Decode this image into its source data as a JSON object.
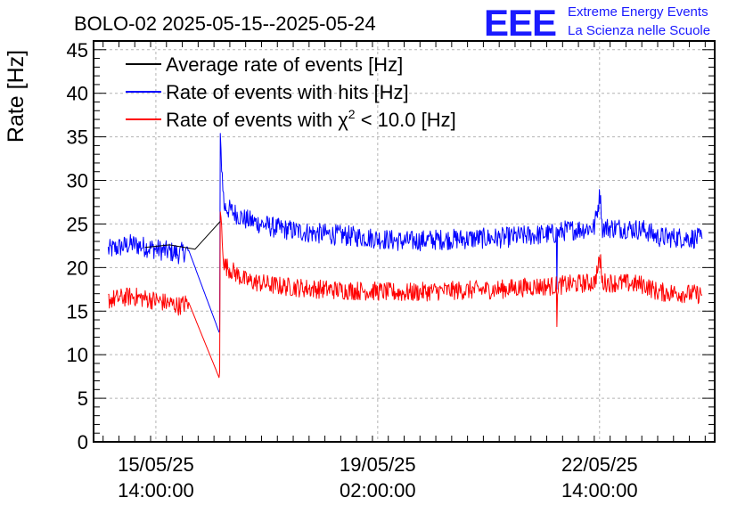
{
  "chart_data": {
    "type": "line",
    "title": "BOLO-02 2025-05-15--2025-05-24",
    "ylabel": "Rate [Hz]",
    "xlabel": "",
    "ylim": [
      0,
      46
    ],
    "yticks": [
      0,
      5,
      10,
      15,
      20,
      25,
      30,
      35,
      40,
      45
    ],
    "grid": true,
    "legend_position": "top-left",
    "x_unit": "days from 15/05/25 00:00",
    "xlim": [
      -0.4,
      9.4
    ],
    "xticks": [
      {
        "x": 0.583,
        "date": "15/05/25",
        "time": "14:00:00"
      },
      {
        "x": 4.083,
        "date": "19/05/25",
        "time": "02:00:00"
      },
      {
        "x": 7.583,
        "date": "22/05/25",
        "time": "14:00:00"
      }
    ],
    "logo": {
      "letters": "EEE",
      "line1": "Extreme Energy Events",
      "line2": "La Scienza nelle Scuole"
    },
    "series": [
      {
        "name": "Average rate of events [Hz]",
        "color": "#000000",
        "points": [
          [
            0.41,
            22.3
          ],
          [
            0.8,
            22.6
          ],
          [
            1.2,
            22.1
          ],
          [
            1.6,
            25.3
          ],
          [
            1.6,
            25.3
          ]
        ]
      },
      {
        "name": "Rate of events with hits [Hz]",
        "color": "#0000ff",
        "noise": 1.2,
        "points": [
          [
            -0.17,
            22.0
          ],
          [
            0.2,
            22.7
          ],
          [
            0.6,
            22.1
          ],
          [
            0.95,
            21.6
          ],
          [
            1.1,
            22.0
          ],
          [
            1.59,
            12.4
          ],
          [
            1.6,
            34.4
          ],
          [
            1.66,
            27.0
          ],
          [
            2.0,
            25.5
          ],
          [
            2.5,
            24.5
          ],
          [
            3.0,
            24.0
          ],
          [
            3.5,
            23.7
          ],
          [
            4.0,
            23.4
          ],
          [
            4.5,
            23.0
          ],
          [
            5.0,
            23.2
          ],
          [
            5.5,
            23.3
          ],
          [
            6.0,
            23.4
          ],
          [
            6.5,
            23.7
          ],
          [
            6.9,
            23.9
          ],
          [
            6.91,
            18.0
          ],
          [
            6.92,
            23.9
          ],
          [
            7.0,
            24.2
          ],
          [
            7.5,
            24.6
          ],
          [
            7.6,
            28.8
          ],
          [
            7.62,
            24.6
          ],
          [
            8.0,
            24.5
          ],
          [
            8.3,
            24.3
          ],
          [
            8.5,
            23.5
          ],
          [
            9.0,
            23.4
          ],
          [
            9.2,
            23.3
          ]
        ]
      },
      {
        "name": "Rate of events with χ² < 10.0 [Hz]",
        "name_lead": "Rate of events with ",
        "name_symbol": "χ",
        "name_sup": "2",
        "name_tail": " < 10.0 [Hz]",
        "color": "#ff0000",
        "noise": 1.1,
        "points": [
          [
            -0.17,
            16.3
          ],
          [
            0.2,
            16.7
          ],
          [
            0.6,
            16.2
          ],
          [
            0.95,
            15.6
          ],
          [
            1.1,
            16.0
          ],
          [
            1.59,
            7.2
          ],
          [
            1.6,
            26.5
          ],
          [
            1.66,
            20.3
          ],
          [
            2.0,
            18.5
          ],
          [
            2.5,
            17.9
          ],
          [
            3.0,
            17.6
          ],
          [
            3.5,
            17.4
          ],
          [
            4.0,
            17.3
          ],
          [
            4.5,
            17.1
          ],
          [
            5.0,
            17.3
          ],
          [
            5.5,
            17.4
          ],
          [
            6.0,
            17.5
          ],
          [
            6.5,
            17.8
          ],
          [
            6.9,
            17.9
          ],
          [
            6.91,
            12.8
          ],
          [
            6.92,
            17.9
          ],
          [
            7.0,
            18.0
          ],
          [
            7.5,
            18.3
          ],
          [
            7.6,
            21.0
          ],
          [
            7.62,
            18.3
          ],
          [
            8.0,
            18.2
          ],
          [
            8.3,
            18.0
          ],
          [
            8.5,
            17.2
          ],
          [
            9.0,
            17.0
          ],
          [
            9.2,
            16.9
          ]
        ]
      }
    ]
  }
}
